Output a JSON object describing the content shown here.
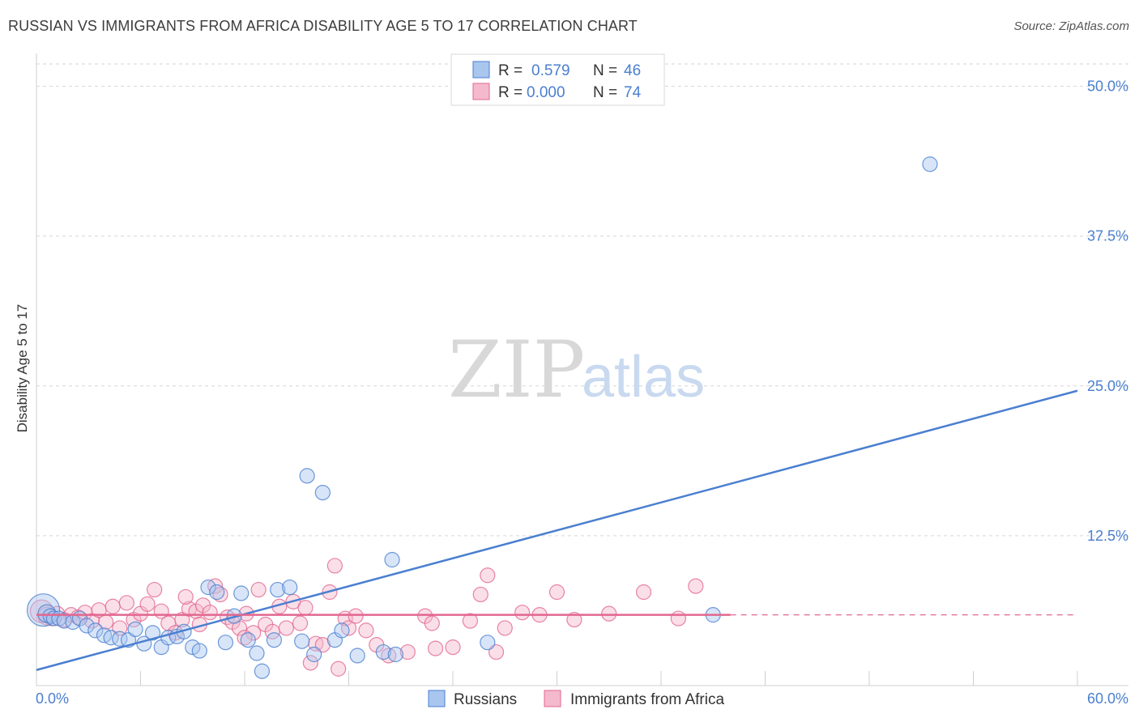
{
  "title": "RUSSIAN VS IMMIGRANTS FROM AFRICA DISABILITY AGE 5 TO 17 CORRELATION CHART",
  "source": "Source: ZipAtlas.com",
  "watermark": {
    "zip": "ZIP",
    "atlas": "atlas"
  },
  "colors": {
    "blue": "#4a7fd0",
    "blue_fill": "#a9c6ef",
    "pink": "#e2678f",
    "pink_fill": "#f4b9cc",
    "grid": "#d6d6d6"
  },
  "chart_data": {
    "type": "scatter",
    "title": "RUSSIAN VS IMMIGRANTS FROM AFRICA DISABILITY AGE 5 TO 17 CORRELATION CHART",
    "xlabel": "",
    "ylabel": "Disability Age 5 to 17",
    "xlim": [
      0,
      60
    ],
    "ylim": [
      0,
      52
    ],
    "x_tick_labels": [
      "0.0%",
      "60.0%"
    ],
    "y_ticks": [
      12.5,
      25.0,
      37.5,
      50.0
    ],
    "y_tick_labels": [
      "12.5%",
      "25.0%",
      "37.5%",
      "50.0%"
    ],
    "legend": [
      {
        "label_r": "R = ",
        "r": "0.579",
        "label_n": "N = ",
        "n": "46"
      },
      {
        "label_r": "R = ",
        "r": "0.000",
        "label_n": "N = ",
        "n": "74"
      }
    ],
    "series": [
      {
        "name": "Russians",
        "color": "#4a7fd0",
        "trend": {
          "x": [
            0,
            60
          ],
          "y": [
            1.3,
            24.6
          ]
        },
        "points": [
          [
            0.4,
            6.3,
            20
          ],
          [
            0.6,
            6.0,
            11
          ],
          [
            0.8,
            5.8,
            9
          ],
          [
            1.0,
            5.6,
            9
          ],
          [
            1.3,
            5.6,
            9
          ],
          [
            1.6,
            5.4,
            9
          ],
          [
            2.1,
            5.3,
            9
          ],
          [
            2.5,
            5.6,
            9
          ],
          [
            2.9,
            5.0,
            9
          ],
          [
            3.4,
            4.6,
            9
          ],
          [
            3.9,
            4.2,
            9
          ],
          [
            4.3,
            4.0,
            9
          ],
          [
            4.8,
            3.9,
            9
          ],
          [
            5.3,
            3.8,
            9
          ],
          [
            5.7,
            4.7,
            9
          ],
          [
            6.2,
            3.5,
            9
          ],
          [
            6.7,
            4.4,
            9
          ],
          [
            7.2,
            3.2,
            9
          ],
          [
            7.6,
            4.0,
            9
          ],
          [
            8.1,
            4.1,
            9
          ],
          [
            8.5,
            4.5,
            9
          ],
          [
            9.0,
            3.2,
            9
          ],
          [
            9.4,
            2.9,
            9
          ],
          [
            9.9,
            8.2,
            9
          ],
          [
            10.4,
            7.8,
            9
          ],
          [
            10.9,
            3.6,
            9
          ],
          [
            11.4,
            5.8,
            9
          ],
          [
            11.8,
            7.7,
            9
          ],
          [
            12.2,
            3.8,
            9
          ],
          [
            12.7,
            2.7,
            9
          ],
          [
            13.0,
            1.2,
            9
          ],
          [
            13.7,
            3.8,
            9
          ],
          [
            13.9,
            8.0,
            9
          ],
          [
            14.6,
            8.2,
            9
          ],
          [
            15.3,
            3.7,
            9
          ],
          [
            15.6,
            17.5,
            9
          ],
          [
            16.0,
            2.6,
            9
          ],
          [
            16.5,
            16.1,
            9
          ],
          [
            17.2,
            3.8,
            9
          ],
          [
            17.6,
            4.6,
            9
          ],
          [
            18.5,
            2.5,
            9
          ],
          [
            20.0,
            2.8,
            9
          ],
          [
            20.5,
            10.5,
            9
          ],
          [
            20.7,
            2.6,
            9
          ],
          [
            26.0,
            3.6,
            9
          ],
          [
            39.0,
            5.9,
            9
          ],
          [
            51.5,
            43.5,
            9
          ]
        ]
      },
      {
        "name": "Immigrants from Africa",
        "color": "#e2678f",
        "trend": {
          "x": [
            0,
            40
          ],
          "y": [
            5.9,
            5.9
          ],
          "dashed_to": 60
        },
        "points": [
          [
            0.3,
            6.2,
            14
          ],
          [
            0.6,
            5.8,
            11
          ],
          [
            0.9,
            5.6,
            9
          ],
          [
            1.2,
            6.0,
            9
          ],
          [
            1.6,
            5.5,
            9
          ],
          [
            2.0,
            5.9,
            9
          ],
          [
            2.4,
            5.7,
            9
          ],
          [
            2.8,
            6.1,
            9
          ],
          [
            3.2,
            5.4,
            9
          ],
          [
            3.6,
            6.3,
            9
          ],
          [
            4.0,
            5.3,
            9
          ],
          [
            4.4,
            6.6,
            9
          ],
          [
            4.8,
            4.8,
            9
          ],
          [
            5.2,
            6.9,
            9
          ],
          [
            5.6,
            5.5,
            9
          ],
          [
            6.0,
            6.0,
            9
          ],
          [
            6.4,
            6.8,
            9
          ],
          [
            6.8,
            8.0,
            9
          ],
          [
            7.2,
            6.2,
            9
          ],
          [
            7.6,
            5.2,
            9
          ],
          [
            8.0,
            4.4,
            9
          ],
          [
            8.4,
            5.5,
            9
          ],
          [
            8.8,
            6.4,
            9
          ],
          [
            9.2,
            6.2,
            9
          ],
          [
            9.4,
            5.1,
            9
          ],
          [
            9.6,
            6.7,
            9
          ],
          [
            10.0,
            6.1,
            9
          ],
          [
            10.3,
            8.3,
            9
          ],
          [
            10.6,
            7.6,
            9
          ],
          [
            11.0,
            5.7,
            9
          ],
          [
            11.3,
            5.3,
            9
          ],
          [
            11.7,
            4.8,
            9
          ],
          [
            12.1,
            6.0,
            9
          ],
          [
            12.5,
            4.4,
            9
          ],
          [
            12.8,
            8.0,
            9
          ],
          [
            13.2,
            5.1,
            9
          ],
          [
            13.6,
            4.5,
            9
          ],
          [
            14.0,
            6.6,
            9
          ],
          [
            14.4,
            4.8,
            9
          ],
          [
            14.8,
            7.0,
            9
          ],
          [
            15.2,
            5.2,
            9
          ],
          [
            15.5,
            6.5,
            9
          ],
          [
            15.8,
            1.9,
            9
          ],
          [
            16.1,
            3.5,
            9
          ],
          [
            16.5,
            3.4,
            9
          ],
          [
            16.9,
            7.8,
            9
          ],
          [
            17.2,
            10.0,
            9
          ],
          [
            17.4,
            1.4,
            9
          ],
          [
            17.8,
            5.6,
            9
          ],
          [
            18.0,
            4.8,
            9
          ],
          [
            18.4,
            5.8,
            9
          ],
          [
            19.0,
            4.6,
            9
          ],
          [
            19.6,
            3.4,
            9
          ],
          [
            20.3,
            2.5,
            9
          ],
          [
            21.4,
            2.8,
            9
          ],
          [
            22.4,
            5.8,
            9
          ],
          [
            22.8,
            5.2,
            9
          ],
          [
            23.0,
            3.1,
            9
          ],
          [
            24.0,
            3.2,
            9
          ],
          [
            25.0,
            5.4,
            9
          ],
          [
            25.6,
            7.6,
            9
          ],
          [
            26.0,
            9.2,
            9
          ],
          [
            26.5,
            2.8,
            9
          ],
          [
            27.0,
            4.8,
            9
          ],
          [
            28.0,
            6.1,
            9
          ],
          [
            29.0,
            5.9,
            9
          ],
          [
            30.0,
            7.8,
            9
          ],
          [
            31.0,
            5.5,
            9
          ],
          [
            33.0,
            6.0,
            9
          ],
          [
            35.0,
            7.8,
            9
          ],
          [
            37.0,
            5.6,
            9
          ],
          [
            38.0,
            8.3,
            9
          ],
          [
            12.0,
            4.0,
            9
          ],
          [
            8.6,
            7.4,
            9
          ]
        ]
      }
    ]
  },
  "bottom_legend": [
    {
      "label": "Russians"
    },
    {
      "label": "Immigrants from Africa"
    }
  ]
}
